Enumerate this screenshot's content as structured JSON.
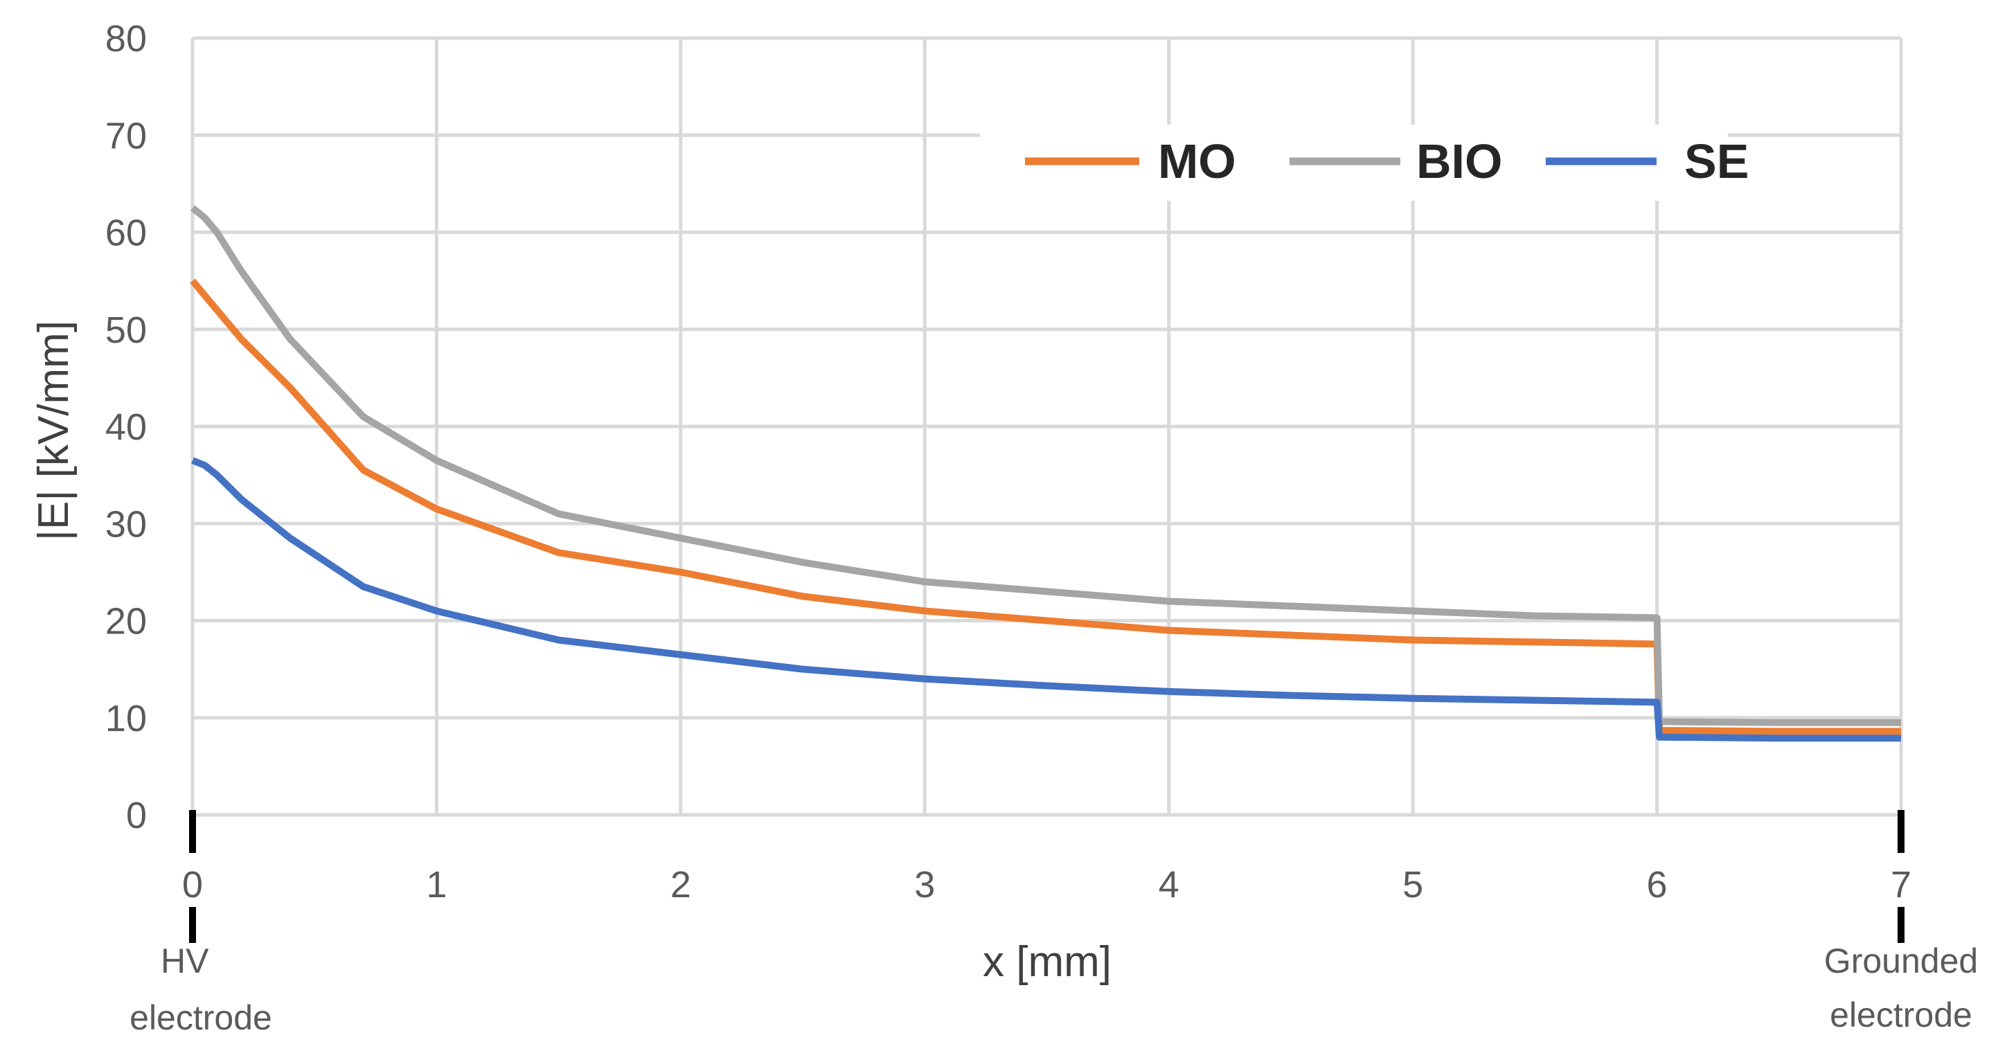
{
  "chart_data": {
    "type": "line",
    "title": "",
    "xlabel": "x [mm]",
    "ylabel": "|E| [kV/mm]",
    "xlim": [
      0,
      7
    ],
    "ylim": [
      0,
      80
    ],
    "xticks": [
      0,
      1,
      2,
      3,
      4,
      5,
      6,
      7
    ],
    "yticks": [
      0,
      10,
      20,
      30,
      40,
      50,
      60,
      70,
      80
    ],
    "grid": true,
    "legend_position": "top-right",
    "annotations": {
      "left_electrode_line1": "HV",
      "left_electrode_line2": "electrode",
      "right_electrode_line1": "Grounded",
      "right_electrode_line2": "electrode"
    },
    "series": [
      {
        "name": "MO",
        "color": "#ED7D31",
        "points": [
          [
            0,
            55
          ],
          [
            0.05,
            53.5
          ],
          [
            0.1,
            52
          ],
          [
            0.2,
            49
          ],
          [
            0.4,
            44
          ],
          [
            0.7,
            35.5
          ],
          [
            1.0,
            31.5
          ],
          [
            1.5,
            27
          ],
          [
            2.0,
            25
          ],
          [
            2.5,
            22.5
          ],
          [
            3.0,
            21
          ],
          [
            3.5,
            20
          ],
          [
            4.0,
            19
          ],
          [
            4.5,
            18.5
          ],
          [
            5.0,
            18
          ],
          [
            5.5,
            17.8
          ],
          [
            5.99,
            17.6
          ],
          [
            6.0,
            17.6
          ],
          [
            6.01,
            8.7
          ],
          [
            6.5,
            8.6
          ],
          [
            7.0,
            8.6
          ]
        ]
      },
      {
        "name": "BIO",
        "color": "#A5A5A5",
        "points": [
          [
            0,
            62.5
          ],
          [
            0.05,
            61.5
          ],
          [
            0.1,
            60
          ],
          [
            0.2,
            56
          ],
          [
            0.4,
            49
          ],
          [
            0.7,
            41
          ],
          [
            1.0,
            36.5
          ],
          [
            1.5,
            31
          ],
          [
            2.0,
            28.5
          ],
          [
            2.5,
            26
          ],
          [
            3.0,
            24
          ],
          [
            3.5,
            23
          ],
          [
            4.0,
            22
          ],
          [
            4.5,
            21.5
          ],
          [
            5.0,
            21
          ],
          [
            5.5,
            20.5
          ],
          [
            5.99,
            20.3
          ],
          [
            6.0,
            20.3
          ],
          [
            6.01,
            9.6
          ],
          [
            6.5,
            9.5
          ],
          [
            7.0,
            9.5
          ]
        ]
      },
      {
        "name": "SE",
        "color": "#4472C4",
        "points": [
          [
            0,
            36.5
          ],
          [
            0.05,
            36
          ],
          [
            0.1,
            35
          ],
          [
            0.2,
            32.5
          ],
          [
            0.4,
            28.5
          ],
          [
            0.7,
            23.5
          ],
          [
            1.0,
            21
          ],
          [
            1.5,
            18
          ],
          [
            2.0,
            16.5
          ],
          [
            2.5,
            15
          ],
          [
            3.0,
            14
          ],
          [
            3.5,
            13.3
          ],
          [
            4.0,
            12.7
          ],
          [
            4.5,
            12.3
          ],
          [
            5.0,
            12
          ],
          [
            5.5,
            11.8
          ],
          [
            5.99,
            11.6
          ],
          [
            6.0,
            11.6
          ],
          [
            6.01,
            8.0
          ],
          [
            6.5,
            7.9
          ],
          [
            7.0,
            7.9
          ]
        ]
      }
    ]
  }
}
